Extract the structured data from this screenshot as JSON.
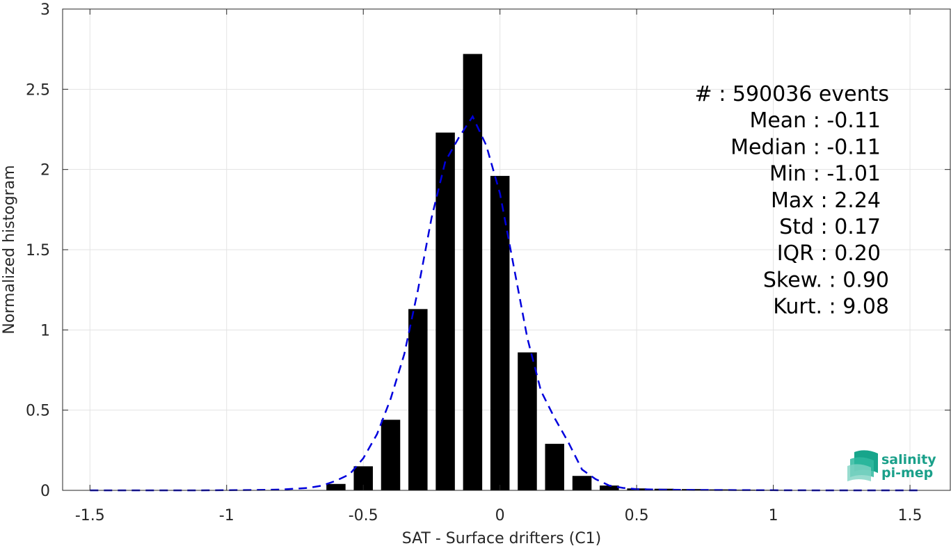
{
  "chart_data": {
    "type": "bar",
    "xlabel": "SAT - Surface drifters (C1)",
    "ylabel": "Normalized histogram",
    "xlim": [
      -1.6,
      1.65
    ],
    "ylim": [
      0,
      3
    ],
    "xticks": [
      -1.5,
      -1,
      -0.5,
      0,
      0.5,
      1,
      1.5
    ],
    "xtick_labels": [
      "-1.5",
      "-1",
      "-0.5",
      "0",
      "0.5",
      "1",
      "1.5"
    ],
    "yticks": [
      0,
      0.5,
      1,
      1.5,
      2,
      2.5,
      3
    ],
    "ytick_labels": [
      "0",
      "0.5",
      "1",
      "1.5",
      "2",
      "2.5",
      "3"
    ],
    "grid": true,
    "bar_width": 0.07,
    "bar_color": "#000000",
    "bars": {
      "x": [
        -0.6,
        -0.5,
        -0.4,
        -0.3,
        -0.2,
        -0.1,
        0.0,
        0.1,
        0.2,
        0.3,
        0.4,
        0.5,
        0.6,
        0.7,
        0.8,
        0.9,
        1.0
      ],
      "values": [
        0.04,
        0.15,
        0.44,
        1.13,
        2.23,
        2.72,
        1.96,
        0.86,
        0.29,
        0.09,
        0.03,
        0.012,
        0.01,
        0.008,
        0.006,
        0.004,
        0.003
      ]
    },
    "fit_line": {
      "style": "dashed",
      "color": "#0000dd",
      "x": [
        -1.5,
        -1.3,
        -1.1,
        -0.9,
        -0.8,
        -0.7,
        -0.65,
        -0.6,
        -0.55,
        -0.5,
        -0.45,
        -0.4,
        -0.35,
        -0.3,
        -0.25,
        -0.2,
        -0.15,
        -0.1,
        -0.05,
        0.0,
        0.05,
        0.1,
        0.15,
        0.2,
        0.25,
        0.3,
        0.35,
        0.4,
        0.45,
        0.5,
        0.6,
        0.8,
        1.0,
        1.2,
        1.53
      ],
      "y": [
        0,
        0,
        0,
        0.002,
        0.005,
        0.015,
        0.03,
        0.06,
        0.1,
        0.2,
        0.35,
        0.57,
        0.85,
        1.25,
        1.7,
        2.05,
        2.2,
        2.33,
        2.15,
        1.85,
        1.4,
        0.95,
        0.62,
        0.45,
        0.3,
        0.13,
        0.07,
        0.03,
        0.015,
        0.008,
        0.004,
        0.002,
        0.001,
        0,
        0
      ]
    },
    "stats": [
      "#  : 590036 events",
      "Mean : -0.11",
      "Median : -0.11",
      "Min : -1.01",
      "Max : 2.24",
      "Std : 0.17",
      "IQR : 0.20",
      "Skew. : 0.90",
      "Kurt. : 9.08"
    ]
  },
  "logo": {
    "line1": "salinity",
    "line2": "pi-mep",
    "color": "#1aa08a"
  }
}
